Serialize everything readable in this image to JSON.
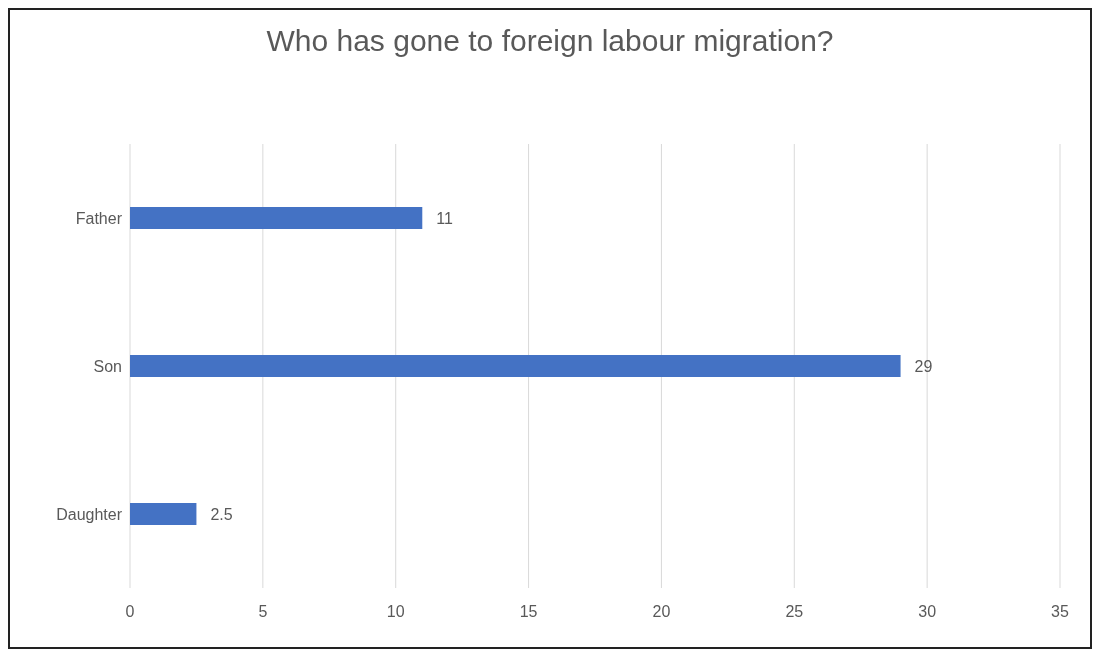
{
  "chart_data": {
    "type": "bar",
    "orientation": "horizontal",
    "title": "Who has gone to foreign labour migration?",
    "categories": [
      "Father",
      "Son",
      "Daughter"
    ],
    "values": [
      11,
      29,
      2.5
    ],
    "color": "#4472c4",
    "xlim": [
      0,
      35
    ],
    "xticks": [
      0,
      5,
      10,
      15,
      20,
      25,
      30,
      35
    ],
    "grid": "x",
    "data_labels": true
  }
}
